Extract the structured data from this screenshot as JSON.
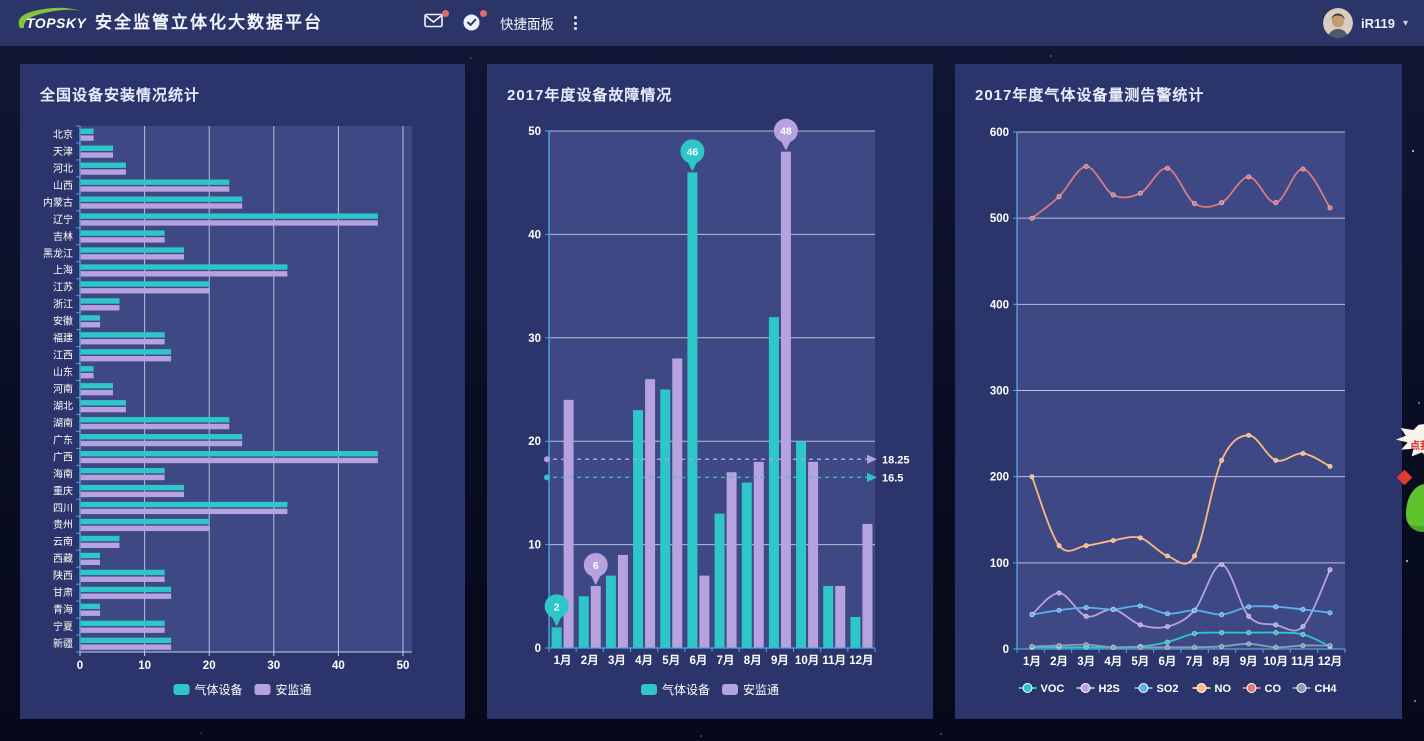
{
  "header": {
    "logo_text": "TOPSKY",
    "title": "安全监管立体化大数据平台",
    "quick_panel_label": "快捷面板",
    "user_name": "iR119",
    "user_caret": "▾"
  },
  "mascot": {
    "bubble_text": "点我加"
  },
  "colors": {
    "teal": "#2ec7c9",
    "purple": "#b6a2de",
    "blue": "#5ab1ef",
    "orange": "#ffb980",
    "salmon": "#d87a80",
    "gray": "#8d98b3",
    "axis": "#4aa6e0",
    "grid": "rgba(225,231,250,0.75)",
    "plot_bg": "#3d4884",
    "panel_bg": "#2b356b",
    "header_bg": "#2b3568",
    "badge": "#e06c6c"
  },
  "chart_data": [
    {
      "type": "bar",
      "orientation": "horizontal",
      "title": "全国设备安装情况统计",
      "categories": [
        "北京",
        "天津",
        "河北",
        "山西",
        "内蒙古",
        "辽宁",
        "吉林",
        "黑龙江",
        "上海",
        "江苏",
        "浙江",
        "安徽",
        "福建",
        "江西",
        "山东",
        "河南",
        "湖北",
        "湖南",
        "广东",
        "广西",
        "海南",
        "重庆",
        "四川",
        "贵州",
        "云南",
        "西藏",
        "陕西",
        "甘肃",
        "青海",
        "宁夏",
        "新疆"
      ],
      "series": [
        {
          "name": "气体设备",
          "color": "#2ec7c9",
          "values": [
            2,
            5,
            7,
            23,
            25,
            46,
            13,
            16,
            32,
            20,
            6,
            3,
            13,
            14,
            2,
            5,
            7,
            23,
            25,
            46,
            13,
            16,
            32,
            20,
            6,
            3,
            13,
            14,
            3,
            13,
            14
          ]
        },
        {
          "name": "安监通",
          "color": "#b6a2de",
          "values": [
            2,
            5,
            7,
            23,
            25,
            46,
            13,
            16,
            32,
            20,
            6,
            3,
            13,
            14,
            2,
            5,
            7,
            23,
            25,
            46,
            13,
            16,
            32,
            20,
            6,
            3,
            13,
            14,
            3,
            13,
            14
          ]
        }
      ],
      "xlim": [
        0,
        50
      ],
      "xticks": [
        0,
        10,
        20,
        30,
        40,
        50
      ],
      "legend_position": "bottom"
    },
    {
      "type": "bar",
      "orientation": "vertical",
      "title": "2017年度设备故障情况",
      "categories": [
        "1月",
        "2月",
        "3月",
        "4月",
        "5月",
        "6月",
        "7月",
        "8月",
        "9月",
        "10月",
        "11月",
        "12月"
      ],
      "series": [
        {
          "name": "气体设备",
          "color": "#2ec7c9",
          "values": [
            2,
            5,
            7,
            23,
            25,
            46,
            13,
            16,
            32,
            20,
            6,
            3
          ]
        },
        {
          "name": "安监通",
          "color": "#b6a2de",
          "values": [
            24,
            6,
            9,
            26,
            28,
            7,
            17,
            18,
            48,
            18,
            6,
            12
          ]
        }
      ],
      "ylim": [
        0,
        50
      ],
      "yticks": [
        0,
        10,
        20,
        30,
        40,
        50
      ],
      "markpoints": [
        {
          "series": 0,
          "category": "1月",
          "value": 2
        },
        {
          "series": 0,
          "category": "6月",
          "value": 46
        },
        {
          "series": 1,
          "category": "2月",
          "value": 6
        },
        {
          "series": 1,
          "category": "9月",
          "value": 48
        }
      ],
      "marklines": [
        {
          "series": 0,
          "value": 16.5,
          "label": "16.5"
        },
        {
          "series": 1,
          "value": 18.25,
          "label": "18.25"
        }
      ],
      "legend_position": "bottom"
    },
    {
      "type": "line",
      "title": "2017年度气体设备量测告警统计",
      "categories": [
        "1月",
        "2月",
        "3月",
        "4月",
        "5月",
        "6月",
        "7月",
        "8月",
        "9月",
        "10月",
        "11月",
        "12月"
      ],
      "series": [
        {
          "name": "VOC",
          "color": "#2ec7c9",
          "values": [
            2,
            2,
            2,
            2,
            3,
            8,
            18,
            19,
            19,
            19,
            17,
            3
          ]
        },
        {
          "name": "H2S",
          "color": "#b6a2de",
          "values": [
            40,
            65,
            38,
            46,
            28,
            26,
            45,
            98,
            38,
            28,
            26,
            92
          ]
        },
        {
          "name": "SO2",
          "color": "#5ab1ef",
          "values": [
            40,
            45,
            48,
            46,
            50,
            41,
            45,
            40,
            49,
            49,
            46,
            42
          ]
        },
        {
          "name": "NO",
          "color": "#ffb980",
          "values": [
            200,
            120,
            120,
            126,
            129,
            108,
            108,
            219,
            248,
            219,
            227,
            212
          ]
        },
        {
          "name": "CO",
          "color": "#d87a80",
          "values": [
            500,
            525,
            560,
            527,
            529,
            558,
            517,
            518,
            548,
            518,
            557,
            512
          ]
        },
        {
          "name": "CH4",
          "color": "#8d98b3",
          "values": [
            3,
            4,
            5,
            2,
            2,
            2,
            2,
            3,
            6,
            2,
            4,
            4
          ]
        }
      ],
      "ylim": [
        0,
        600
      ],
      "yticks": [
        0,
        100,
        200,
        300,
        400,
        500,
        600
      ],
      "smooth": true,
      "legend_position": "bottom"
    }
  ]
}
